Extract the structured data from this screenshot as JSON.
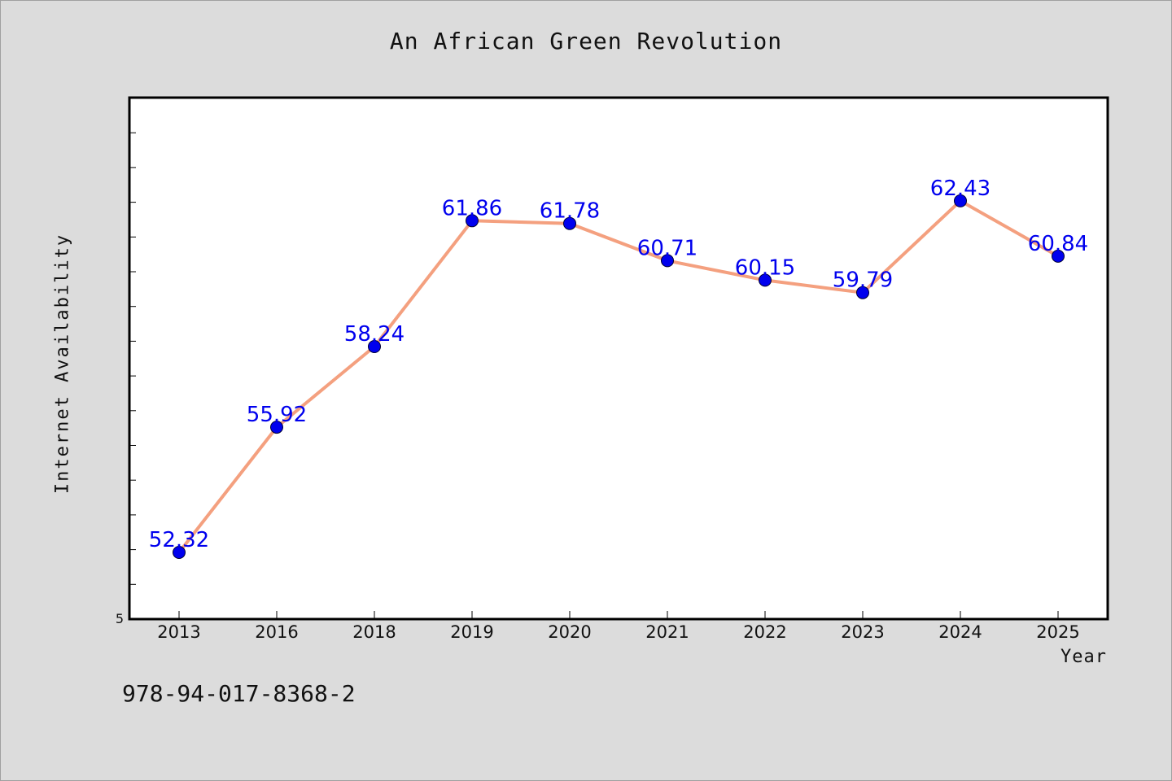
{
  "chart_data": {
    "type": "line",
    "title": "An African Green Revolution",
    "xlabel": "Year",
    "ylabel": "Internet Availability",
    "categories": [
      "2013",
      "2016",
      "2018",
      "2019",
      "2020",
      "2021",
      "2022",
      "2023",
      "2024",
      "2025"
    ],
    "series": [
      {
        "values": [
          52.32,
          55.92,
          58.24,
          61.86,
          61.78,
          60.71,
          60.15,
          59.79,
          62.43,
          60.84
        ],
        "line_color": "#f4a07f",
        "marker_color": "#0000ee",
        "label_color": "#0000ee"
      }
    ],
    "y_tick_label": "5",
    "ylim": [
      50.4,
      65.4
    ],
    "grid": false,
    "legend": "none"
  },
  "footer": "978-94-017-8368-2"
}
